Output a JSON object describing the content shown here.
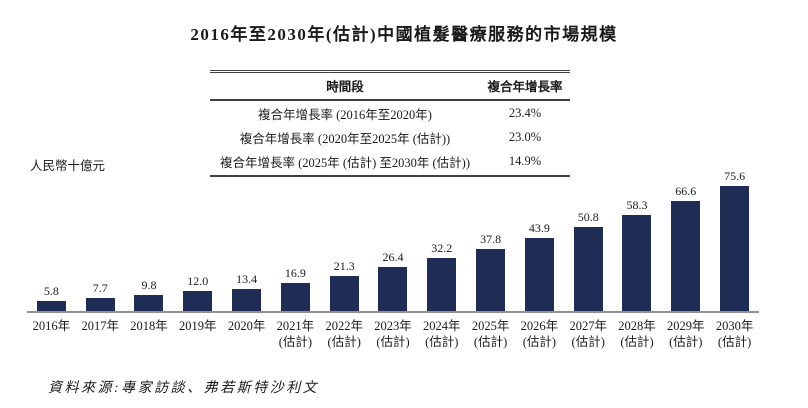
{
  "title": "2016年至2030年(估計)中國植髮醫療服務的市場規模",
  "cagr_table": {
    "columns": [
      "時間段",
      "複合年增長率"
    ],
    "rows": [
      {
        "period": "複合年增長率 (2016年至2020年)",
        "value": "23.4%"
      },
      {
        "period": "複合年增長率 (2020年至2025年 (估計))",
        "value": "23.0%"
      },
      {
        "period": "複合年增長率 (2025年 (估計) 至2030年 (估計))",
        "value": "14.9%"
      }
    ]
  },
  "source": "資料來源:專家訪談、弗若斯特沙利文",
  "colors": {
    "bar": "#1f2c55",
    "axis_line": "#919191",
    "text": "#1a1a1a",
    "table_border": "#404040"
  },
  "chart_data": {
    "type": "bar",
    "title": "2016年至2030年(估計)中國植髮醫療服務的市場規模",
    "ylabel": "人民幣十億元",
    "xlabel": "",
    "ylim": [
      0,
      80
    ],
    "grid": false,
    "legend": null,
    "categories": [
      "2016年",
      "2017年",
      "2018年",
      "2019年",
      "2020年",
      "2021年(估計)",
      "2022年(估計)",
      "2023年(估計)",
      "2024年(估計)",
      "2025年(估計)",
      "2026年(估計)",
      "2027年(估計)",
      "2028年(估計)",
      "2029年(估計)",
      "2030年(估計)"
    ],
    "tick_lines": [
      [
        "2016年"
      ],
      [
        "2017年"
      ],
      [
        "2018年"
      ],
      [
        "2019年"
      ],
      [
        "2020年"
      ],
      [
        "2021年",
        "(估計)"
      ],
      [
        "2022年",
        "(估計)"
      ],
      [
        "2023年",
        "(估計)"
      ],
      [
        "2024年",
        "(估計)"
      ],
      [
        "2025年",
        "(估計)"
      ],
      [
        "2026年",
        "(估計)"
      ],
      [
        "2027年",
        "(估計)"
      ],
      [
        "2028年",
        "(估計)"
      ],
      [
        "2029年",
        "(估計)"
      ],
      [
        "2030年",
        "(估計)"
      ]
    ],
    "values": [
      5.8,
      7.7,
      9.8,
      12.0,
      13.4,
      16.9,
      21.3,
      26.4,
      32.2,
      37.8,
      43.9,
      50.8,
      58.3,
      66.6,
      75.6
    ]
  }
}
